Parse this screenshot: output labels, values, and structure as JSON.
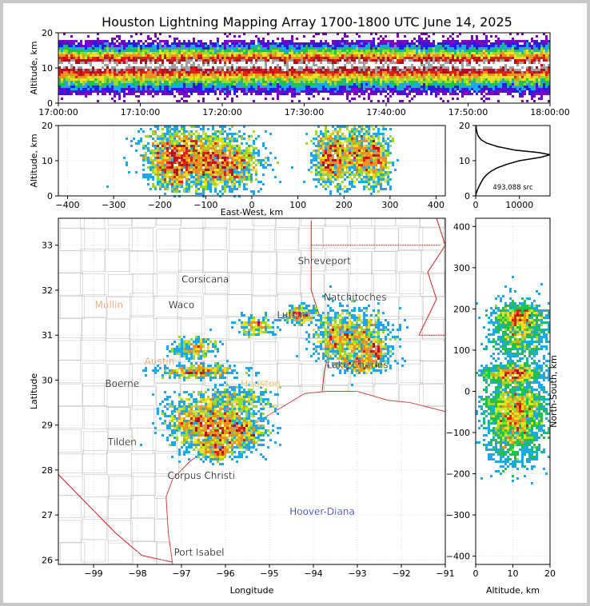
{
  "title": "Houston Lightning Mapping Array 1700-1800 UTC June 14, 2025",
  "colors": {
    "frame": "#c8c8c8",
    "state_border": "#d02020",
    "county_border": "#b4b4b4",
    "coast": "#e04040"
  },
  "chart_data": [
    {
      "id": "altitude_time",
      "type": "heatmap",
      "ylabel": "Altitude, km",
      "xlabel": "",
      "ylim": [
        0,
        20
      ],
      "yticks": [
        "0",
        "10",
        "20"
      ],
      "xticks": [
        "17:00:00",
        "17:10:00",
        "17:20:00",
        "17:30:00",
        "17:40:00",
        "17:50:00",
        "18:00:00"
      ],
      "xlim": [
        "17:00:00",
        "18:00:00"
      ],
      "peak_altitude_km": 11,
      "layer_top_km": 18,
      "layer_bottom_km": 2
    },
    {
      "id": "altitude_eastwest",
      "type": "heatmap",
      "ylabel": "Altitude, km",
      "xlabel": "East-West, km",
      "xlim": [
        -420,
        420
      ],
      "ylim": [
        0,
        20
      ],
      "xticks": [
        "−400",
        "−300",
        "−200",
        "−100",
        "0",
        "100",
        "200",
        "300",
        "400"
      ],
      "yticks": [
        "0",
        "10",
        "20"
      ],
      "cells": [
        {
          "x": -110,
          "z": 11,
          "sx": 60,
          "sz": 5,
          "w": 1.0
        },
        {
          "x": -60,
          "z": 9,
          "sx": 35,
          "sz": 3,
          "w": 0.55
        },
        {
          "x": -170,
          "z": 10,
          "sx": 25,
          "sz": 4,
          "w": 0.6
        },
        {
          "x": 170,
          "z": 11,
          "sx": 18,
          "sz": 4,
          "w": 0.45
        },
        {
          "x": 225,
          "z": 12,
          "sx": 28,
          "sz": 4,
          "w": 0.5
        },
        {
          "x": 270,
          "z": 10,
          "sx": 15,
          "sz": 4,
          "w": 0.3
        }
      ]
    },
    {
      "id": "altitude_histogram",
      "type": "line",
      "xlabel": "",
      "xlim": [
        0,
        17000
      ],
      "ylim": [
        0,
        20
      ],
      "xticks": [
        "0",
        "10000"
      ],
      "yticks": [
        "0",
        "10",
        "20"
      ],
      "annotation": "493,088 src",
      "points": [
        [
          0,
          0
        ],
        [
          200,
          1
        ],
        [
          500,
          2
        ],
        [
          900,
          3
        ],
        [
          1300,
          4
        ],
        [
          1800,
          5
        ],
        [
          2500,
          6
        ],
        [
          3500,
          7
        ],
        [
          5000,
          8
        ],
        [
          7200,
          9
        ],
        [
          10000,
          10
        ],
        [
          15000,
          11
        ],
        [
          17000,
          11.7
        ],
        [
          14500,
          12.3
        ],
        [
          9000,
          13
        ],
        [
          5000,
          14
        ],
        [
          2500,
          15
        ],
        [
          1200,
          16
        ],
        [
          600,
          17
        ],
        [
          300,
          18
        ],
        [
          150,
          19
        ],
        [
          80,
          20
        ]
      ]
    },
    {
      "id": "plan_view_map",
      "type": "scatter",
      "xlabel": "Longitude",
      "ylabel": "Latitude",
      "xlim": [
        -99.8,
        -91
      ],
      "ylim": [
        25.9,
        33.6
      ],
      "xticks": [
        "−99",
        "−98",
        "−97",
        "−96",
        "−95",
        "−94",
        "−93",
        "−92",
        "−91"
      ],
      "yticks": [
        "26",
        "27",
        "28",
        "29",
        "30",
        "31",
        "32",
        "33"
      ],
      "city_labels": [
        {
          "name": "Shreveport",
          "lon": -93.75,
          "lat": 32.58,
          "color": "#000000"
        },
        {
          "name": "Corsicana",
          "lon": -96.46,
          "lat": 32.17,
          "color": "#000000"
        },
        {
          "name": "Mullin",
          "lon": -98.65,
          "lat": 31.6,
          "color": "#f08a50"
        },
        {
          "name": "Waco",
          "lon": -97.0,
          "lat": 31.6,
          "color": "#000000"
        },
        {
          "name": "Natchitoches",
          "lon": -93.05,
          "lat": 31.77,
          "color": "#000000"
        },
        {
          "name": "Lufkin",
          "lon": -94.5,
          "lat": 31.38,
          "color": "#000000"
        },
        {
          "name": "Lake Charles",
          "lon": -93.0,
          "lat": 30.27,
          "color": "#000000"
        },
        {
          "name": "Austin",
          "lon": -97.5,
          "lat": 30.35,
          "color": "#f08a50"
        },
        {
          "name": "Houston",
          "lon": -95.2,
          "lat": 29.85,
          "color": "#f0b030"
        },
        {
          "name": "Boerne",
          "lon": -98.35,
          "lat": 29.85,
          "color": "#000000"
        },
        {
          "name": "Tilden",
          "lon": -98.35,
          "lat": 28.55,
          "color": "#000000"
        },
        {
          "name": "Corpus Christi",
          "lon": -96.55,
          "lat": 27.8,
          "color": "#000000"
        },
        {
          "name": "Hoover-Diana",
          "lon": -93.8,
          "lat": 27.0,
          "color": "#1a1acc"
        },
        {
          "name": "Port Isabel",
          "lon": -96.6,
          "lat": 26.1,
          "color": "#000000"
        }
      ],
      "cells": [
        {
          "lon": -96.6,
          "lat": 29.05,
          "sx": 0.38,
          "sy": 0.28,
          "w": 1.0
        },
        {
          "lon": -96.05,
          "lat": 28.95,
          "sx": 0.45,
          "sy": 0.28,
          "w": 0.7
        },
        {
          "lon": -95.7,
          "lat": 28.85,
          "sx": 0.3,
          "sy": 0.2,
          "w": 0.45
        },
        {
          "lon": -95.75,
          "lat": 29.55,
          "sx": 0.4,
          "sy": 0.15,
          "w": 0.35
        },
        {
          "lon": -96.2,
          "lat": 28.45,
          "sx": 0.2,
          "sy": 0.12,
          "w": 0.3
        },
        {
          "lon": -96.6,
          "lat": 30.2,
          "sx": 0.45,
          "sy": 0.08,
          "w": 0.4
        },
        {
          "lon": -96.7,
          "lat": 30.7,
          "sx": 0.25,
          "sy": 0.12,
          "w": 0.25
        },
        {
          "lon": -93.45,
          "lat": 31.0,
          "sx": 0.3,
          "sy": 0.28,
          "w": 0.6
        },
        {
          "lon": -92.9,
          "lat": 30.95,
          "sx": 0.35,
          "sy": 0.3,
          "w": 0.55
        },
        {
          "lon": -92.6,
          "lat": 30.65,
          "sx": 0.15,
          "sy": 0.12,
          "w": 0.3
        },
        {
          "lon": -92.95,
          "lat": 30.35,
          "sx": 0.25,
          "sy": 0.1,
          "w": 0.3
        },
        {
          "lon": -94.3,
          "lat": 31.45,
          "sx": 0.15,
          "sy": 0.1,
          "w": 0.25
        },
        {
          "lon": -95.3,
          "lat": 31.2,
          "sx": 0.2,
          "sy": 0.1,
          "w": 0.2
        }
      ]
    },
    {
      "id": "northsouth_altitude",
      "type": "heatmap",
      "xlabel": "Altitude, km",
      "ylabel": "North-South, km",
      "xlim": [
        0,
        20
      ],
      "ylim": [
        -420,
        420
      ],
      "xticks": [
        "0",
        "10",
        "20"
      ],
      "yticks": [
        "−400",
        "−300",
        "−200",
        "−100",
        "0",
        "100",
        "200",
        "300",
        "400"
      ],
      "cells": [
        {
          "z": 10.5,
          "y": -85,
          "sx": 4,
          "sy": 45,
          "w": 1.0
        },
        {
          "z": 11,
          "y": -30,
          "sx": 4,
          "sy": 25,
          "w": 0.55
        },
        {
          "z": 10,
          "y": 42,
          "sx": 4,
          "sy": 12,
          "w": 0.55
        },
        {
          "z": 12,
          "y": 145,
          "sx": 4,
          "sy": 35,
          "w": 0.6
        },
        {
          "z": 12,
          "y": 180,
          "sx": 3,
          "sy": 15,
          "w": 0.35
        }
      ]
    }
  ]
}
